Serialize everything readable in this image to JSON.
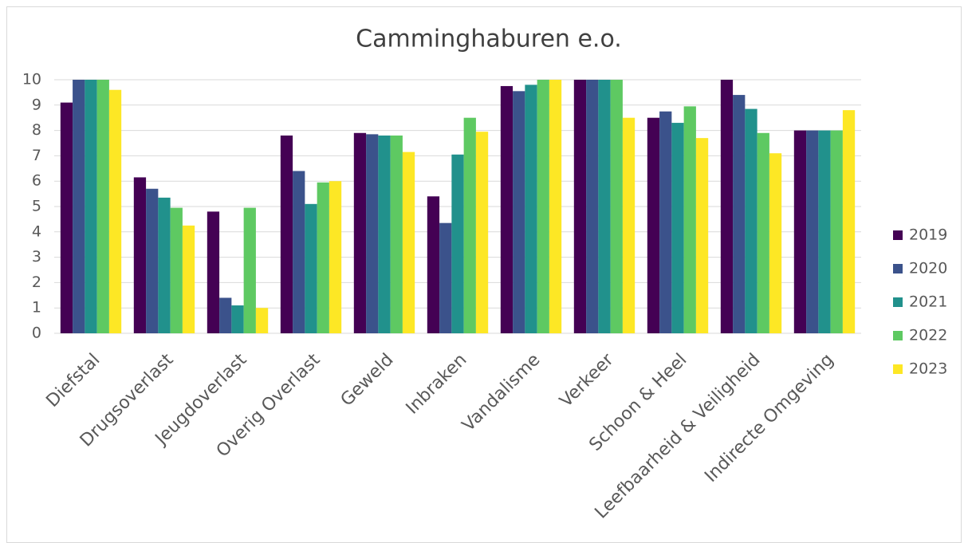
{
  "chart_data": {
    "type": "bar",
    "title": "Camminghaburen e.o.",
    "categories": [
      "Diefstal",
      "Drugsoverlast",
      "Jeugdoverlast",
      "Overig Overlast",
      "Geweld",
      "Inbraken",
      "Vandalisme",
      "Verkeer",
      "Schoon & Heel",
      "Leefbaarheid & Veiligheid",
      "Indirecte Omgeving"
    ],
    "series": [
      {
        "name": "2019",
        "color": "#440154",
        "values": [
          9.1,
          6.15,
          4.8,
          7.8,
          7.9,
          5.4,
          9.75,
          10,
          8.5,
          10,
          8.0
        ]
      },
      {
        "name": "2020",
        "color": "#3b528b",
        "values": [
          10,
          5.7,
          1.4,
          6.4,
          7.85,
          4.35,
          9.55,
          10,
          8.75,
          9.4,
          8.0
        ]
      },
      {
        "name": "2021",
        "color": "#21918c",
        "values": [
          10,
          5.35,
          1.1,
          5.1,
          7.8,
          7.05,
          9.8,
          10,
          8.3,
          8.85,
          8.0
        ]
      },
      {
        "name": "2022",
        "color": "#5ec962",
        "values": [
          10,
          4.95,
          4.95,
          5.95,
          7.8,
          8.5,
          10,
          10,
          8.95,
          7.9,
          8.0
        ]
      },
      {
        "name": "2023",
        "color": "#fde725",
        "values": [
          9.6,
          4.25,
          1.0,
          6.0,
          7.15,
          7.95,
          10,
          8.5,
          7.7,
          7.1,
          8.8
        ]
      }
    ],
    "ylim": [
      0,
      10
    ],
    "yticks": [
      0,
      1,
      2,
      3,
      4,
      5,
      6,
      7,
      8,
      9,
      10
    ],
    "grid": true,
    "legend": "right"
  }
}
